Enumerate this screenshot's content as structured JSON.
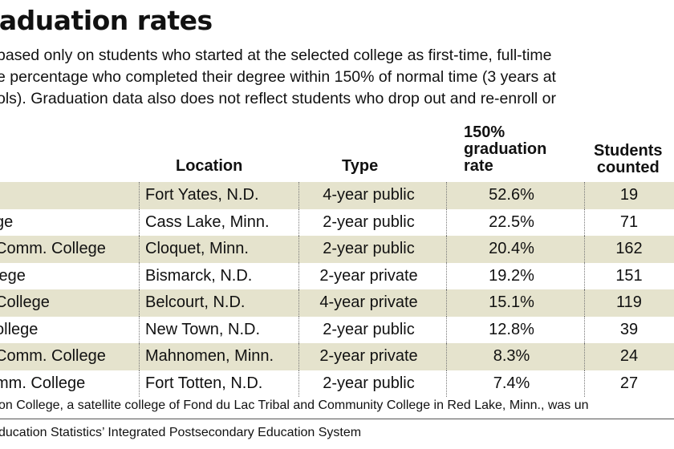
{
  "title": "graduation rates",
  "intro": [
    "based only on students who started at the selected college as first-time, full-time",
    "e percentage who completed their degree within 150% of normal time (3 years at",
    "ols). Graduation data also does not reflect students who drop out and re-enroll or"
  ],
  "footnote": "on College, a satellite college of Fond du Lac Tribal and Community College in Red Lake, Minn., was un",
  "source": "ducation Statistics’ Integrated Postsecondary Education System",
  "colors": {
    "row_shade": "#e5e3cd",
    "text": "#111111",
    "background": "#ffffff"
  },
  "chart_data": {
    "type": "table",
    "columns": [
      {
        "key": "name",
        "label": ""
      },
      {
        "key": "location",
        "label": "Location"
      },
      {
        "key": "type",
        "label": "Type"
      },
      {
        "key": "rate",
        "label": "150%\ngraduation\nrate"
      },
      {
        "key": "count",
        "label": "Students\ncounted"
      }
    ],
    "header_lines": {
      "location": [
        "Location"
      ],
      "type": [
        "Type"
      ],
      "rate": [
        "150%",
        "graduation",
        "rate"
      ],
      "count": [
        "Students",
        "counted"
      ]
    },
    "rows": [
      {
        "name": "",
        "location": "Fort Yates, N.D.",
        "type": "4-year public",
        "rate": "52.6%",
        "rate_value": 52.6,
        "count": "19"
      },
      {
        "name": "ge",
        "location": "Cass Lake, Minn.",
        "type": "2-year public",
        "rate": "22.5%",
        "rate_value": 22.5,
        "count": "71"
      },
      {
        "name": "Comm. College",
        "location": "Cloquet, Minn.",
        "type": "2-year public",
        "rate": "20.4%",
        "rate_value": 20.4,
        "count": "162"
      },
      {
        "name": "lege",
        "location": "Bismarck, N.D.",
        "type": "2-year private",
        "rate": "19.2%",
        "rate_value": 19.2,
        "count": "151"
      },
      {
        "name": "College",
        "location": "Belcourt, N.D.",
        "type": "4-year private",
        "rate": "15.1%",
        "rate_value": 15.1,
        "count": "119"
      },
      {
        "name": "ollege",
        "location": "New Town, N.D.",
        "type": "2-year public",
        "rate": "12.8%",
        "rate_value": 12.8,
        "count": "39"
      },
      {
        "name": "Comm. College",
        "location": "Mahnomen, Minn.",
        "type": "2-year private",
        "rate": "8.3%",
        "rate_value": 8.3,
        "count": "24"
      },
      {
        "name": "mm. College",
        "location": "Fort Totten, N.D.",
        "type": "2-year public",
        "rate": "7.4%",
        "rate_value": 7.4,
        "count": "27"
      }
    ]
  }
}
